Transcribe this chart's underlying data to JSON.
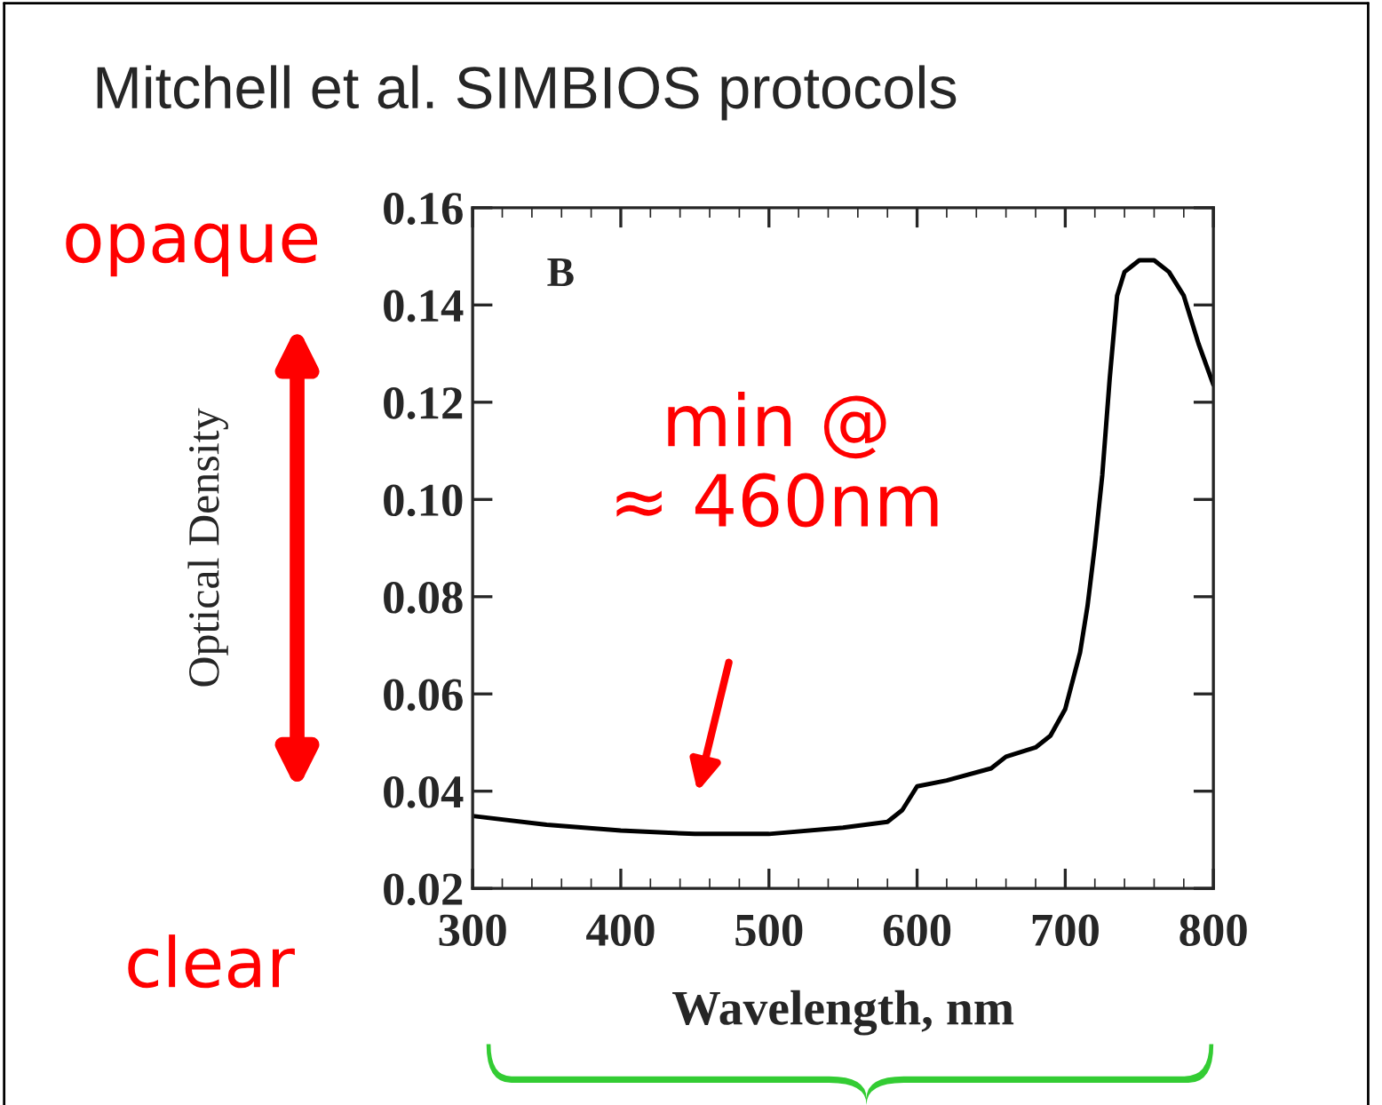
{
  "chart_data": {
    "type": "line",
    "title": "Mitchell et al. SIMBIOS protocols",
    "xlabel": "Wavelength, nm",
    "ylabel": "Optical Density",
    "x": [
      300,
      350,
      400,
      450,
      500,
      550,
      580,
      590,
      600,
      620,
      650,
      660,
      680,
      690,
      700,
      710,
      715,
      720,
      725,
      730,
      735,
      740,
      750,
      760,
      770,
      780,
      790,
      800
    ],
    "series": [
      {
        "color": "#000000",
        "values": [
          0.0349,
          0.0331,
          0.0319,
          0.0312,
          0.0312,
          0.0325,
          0.0337,
          0.0361,
          0.041,
          0.0422,
          0.0447,
          0.0471,
          0.049,
          0.0514,
          0.0569,
          0.0685,
          0.078,
          0.0905,
          0.105,
          0.1248,
          0.1419,
          0.1468,
          0.1492,
          0.1492,
          0.1468,
          0.1419,
          0.132,
          0.1236
        ]
      }
    ],
    "xlim": [
      300,
      800
    ],
    "xticks": [
      300,
      400,
      500,
      600,
      700,
      800
    ],
    "ylim": [
      0.02,
      0.16
    ],
    "yticks": [
      {
        "value": 0.02,
        "label": "0.02"
      },
      {
        "value": 0.04,
        "label": "0.04"
      },
      {
        "value": 0.06,
        "label": "0.06"
      },
      {
        "value": 0.08,
        "label": "0.08"
      },
      {
        "value": 0.1,
        "label": "0.10"
      },
      {
        "value": 0.12,
        "label": "0.12"
      },
      {
        "value": 0.14,
        "label": "0.14"
      },
      {
        "value": 0.16,
        "label": "0.16"
      }
    ],
    "annotations": [
      "B",
      "min @\n≈ 460nm",
      "opaque",
      "clear"
    ],
    "grid": false,
    "legend": false,
    "marker": "none",
    "line_style": "solid"
  }
}
